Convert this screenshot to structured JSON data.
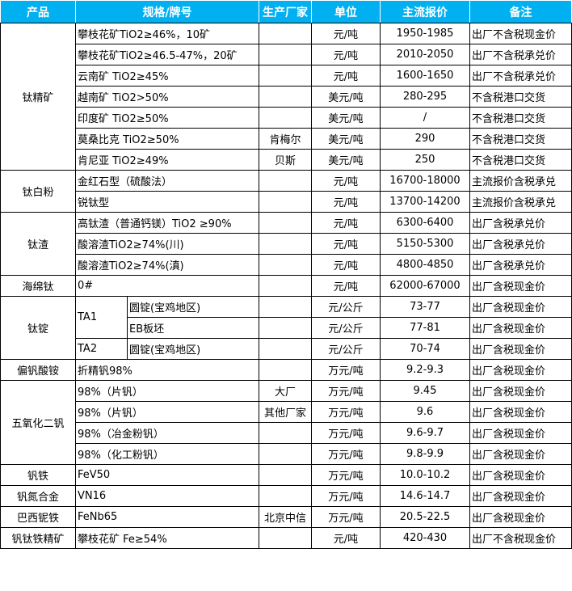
{
  "header_color": "#00B0F0",
  "headers": [
    "产品",
    "规格/牌号",
    "生产厂家",
    "单位",
    "主流报价",
    "备注"
  ],
  "groups": [
    {
      "product": "钛精矿",
      "rows": [
        {
          "spec": "攀枝花矿TiO2≥46%，10矿",
          "maker": "",
          "unit": "元/吨",
          "price": "1950-1985",
          "note": "出厂不含税现金价"
        },
        {
          "spec": "攀枝花矿TiO2≥46.5-47%，20矿",
          "maker": "",
          "unit": "元/吨",
          "price": "2010-2050",
          "note": "出厂不含税承兑价"
        },
        {
          "spec": "云南矿 TiO2≥45%",
          "maker": "",
          "unit": "元/吨",
          "price": "1600-1650",
          "note": "出厂不含税承兑价"
        },
        {
          "spec": "越南矿 TiO2>50%",
          "maker": "",
          "unit": "美元/吨",
          "price": "280-295",
          "note": "不含税港口交货"
        },
        {
          "spec": "印度矿 TiO2≥50%",
          "maker": "",
          "unit": "美元/吨",
          "price": "/",
          "note": "不含税港口交货"
        },
        {
          "spec": "莫桑比克 TiO2≥50%",
          "maker": "肯梅尔",
          "unit": "美元/吨",
          "price": "290",
          "note": "不含税港口交货"
        },
        {
          "spec": "肯尼亚 TiO2≥49%",
          "maker": "贝斯",
          "unit": "美元/吨",
          "price": "250",
          "note": "不含税港口交货"
        }
      ]
    },
    {
      "product": "钛白粉",
      "rows": [
        {
          "spec": "金红石型（硫酸法）",
          "maker": "",
          "unit": "元/吨",
          "price": "16700-18000",
          "note": "主流报价含税承兑"
        },
        {
          "spec": "锐钛型",
          "maker": "",
          "unit": "元/吨",
          "price": "13700-14200",
          "note": "主流报价含税承兑"
        }
      ]
    },
    {
      "product": "钛渣",
      "rows": [
        {
          "spec": "高钛渣（普通钙镁）TiO2 ≥90%",
          "maker": "",
          "unit": "元/吨",
          "price": "6300-6400",
          "note": "出厂含税承兑价"
        },
        {
          "spec": "酸溶渣TiO2≥74%(川)",
          "maker": "",
          "unit": "元/吨",
          "price": "5150-5300",
          "note": "出厂含税承兑价"
        },
        {
          "spec": "酸溶渣TiO2≥74%(滇)",
          "maker": "",
          "unit": "元/吨",
          "price": "4800-4850",
          "note": "出厂含税承兑价"
        }
      ]
    },
    {
      "product": "海绵钛",
      "rows": [
        {
          "spec": "0#",
          "maker": "",
          "unit": "元/吨",
          "price": "62000-67000",
          "note": "出厂含税现金价"
        }
      ]
    },
    {
      "product": "钛锭",
      "sub": true,
      "rows": [
        {
          "spec": "TA1",
          "spec_span": 2,
          "sub": "圆锭(宝鸡地区)",
          "maker": "",
          "unit": "元/公斤",
          "price": "73-77",
          "note": "出厂含税现金价"
        },
        {
          "sub": "EB板坯",
          "maker": "",
          "unit": "元/公斤",
          "price": "77-81",
          "note": "出厂含税现金价"
        },
        {
          "spec": "TA2",
          "spec_span": 1,
          "sub": "圆锭(宝鸡地区)",
          "maker": "",
          "unit": "元/公斤",
          "price": "70-74",
          "note": "出厂含税现金价"
        }
      ]
    },
    {
      "product": "偏钒酸铵",
      "rows": [
        {
          "spec": "折精钒98%",
          "maker": "",
          "unit": "万元/吨",
          "price": "9.2-9.3",
          "note": "出厂含税现金价"
        }
      ]
    },
    {
      "product": "五氧化二钒",
      "rows": [
        {
          "spec": "98%（片钒）",
          "maker": "大厂",
          "unit": "万元/吨",
          "price": "9.45",
          "note": "出厂含税现金价"
        },
        {
          "spec": "98%（片钒）",
          "maker": "其他厂家",
          "unit": "万元/吨",
          "price": "9.6",
          "note": "出厂含税现金价"
        },
        {
          "spec": "98%（冶金粉钒）",
          "maker": "",
          "unit": "万元/吨",
          "price": "9.6-9.7",
          "note": "出厂含税现金价"
        },
        {
          "spec": "98%（化工粉钒）",
          "maker": "",
          "unit": "万元/吨",
          "price": "9.8-9.9",
          "note": "出厂含税现金价"
        }
      ]
    },
    {
      "product": "钒铁",
      "rows": [
        {
          "spec": "FeV50",
          "maker": "",
          "unit": "万元/吨",
          "price": "10.0-10.2",
          "note": "出厂含税现金价"
        }
      ]
    },
    {
      "product": "钒氮合金",
      "rows": [
        {
          "spec": "VN16",
          "maker": "",
          "unit": "万元/吨",
          "price": "14.6-14.7",
          "note": "出厂含税现金价"
        }
      ]
    },
    {
      "product": "巴西铌铁",
      "rows": [
        {
          "spec": "FeNb65",
          "maker": "北京中信",
          "unit": "万元/吨",
          "price": "20.5-22.5",
          "note": "出厂含税现金价"
        }
      ]
    },
    {
      "product": "钒钛铁精矿",
      "rows": [
        {
          "spec": "攀枝花矿 Fe≥54%",
          "maker": "",
          "unit": "元/吨",
          "price": "420-430",
          "note": "出厂不含税现金价"
        }
      ]
    }
  ]
}
